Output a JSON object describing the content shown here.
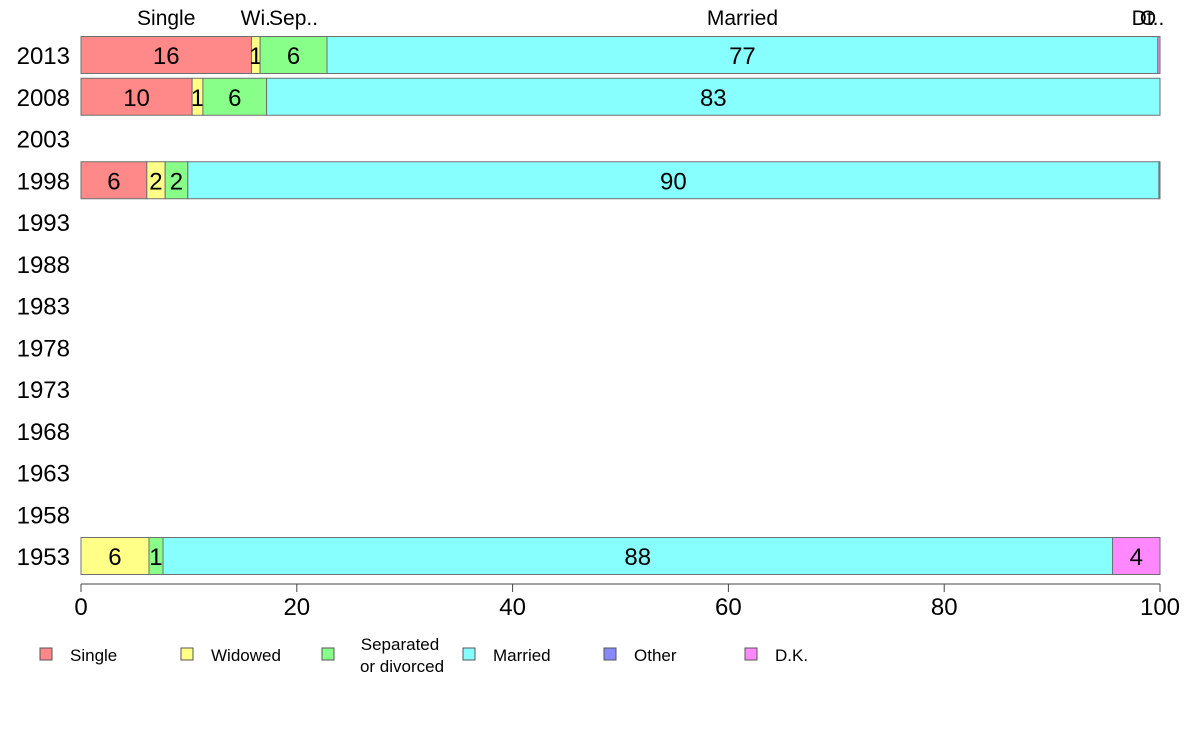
{
  "chart_data": {
    "type": "bar",
    "orientation": "horizontal",
    "stacked": true,
    "categories": [
      "2013",
      "2008",
      "2003",
      "1998",
      "1993",
      "1988",
      "1983",
      "1978",
      "1973",
      "1968",
      "1963",
      "1958",
      "1953"
    ],
    "series": [
      {
        "name": "Single",
        "color": "#FF8888",
        "values": [
          15.8,
          10.3,
          null,
          6.1,
          null,
          null,
          null,
          null,
          null,
          null,
          null,
          null,
          0
        ],
        "labels": [
          "16",
          "10",
          "",
          "6",
          "",
          "",
          "",
          "",
          "",
          "",
          "",
          "",
          ""
        ]
      },
      {
        "name": "Widowed",
        "color": "#FFFF88",
        "values": [
          0.8,
          1.0,
          null,
          1.7,
          null,
          null,
          null,
          null,
          null,
          null,
          null,
          null,
          6.3
        ],
        "labels": [
          "1",
          "1",
          "",
          "2",
          "",
          "",
          "",
          "",
          "",
          "",
          "",
          "",
          "6"
        ]
      },
      {
        "name": "Separated or divorced",
        "color": "#88FF88",
        "values": [
          6.2,
          5.9,
          null,
          2.1,
          null,
          null,
          null,
          null,
          null,
          null,
          null,
          null,
          1.3
        ],
        "labels": [
          "6",
          "6",
          "",
          "2",
          "",
          "",
          "",
          "",
          "",
          "",
          "",
          "",
          "1"
        ]
      },
      {
        "name": "Married",
        "color": "#88FFFF",
        "values": [
          77.0,
          82.8,
          null,
          90.0,
          null,
          null,
          null,
          null,
          null,
          null,
          null,
          null,
          88.0
        ],
        "labels": [
          "77",
          "83",
          "",
          "90",
          "",
          "",
          "",
          "",
          "",
          "",
          "",
          "",
          "88"
        ]
      },
      {
        "name": "Other",
        "color": "#8888FF",
        "values": [
          0,
          0,
          null,
          0,
          null,
          null,
          null,
          null,
          null,
          null,
          null,
          null,
          0
        ],
        "labels": [
          "",
          "",
          "",
          "",
          "",
          "",
          "",
          "",
          "",
          "",
          "",
          "",
          ""
        ]
      },
      {
        "name": "D.K.",
        "color": "#FF88FF",
        "values": [
          0.2,
          0,
          null,
          0.1,
          null,
          null,
          null,
          null,
          null,
          null,
          null,
          null,
          4.4
        ],
        "labels": [
          "",
          "",
          "",
          "",
          "",
          "",
          "",
          "",
          "",
          "",
          "",
          "",
          "4"
        ]
      }
    ],
    "top_labels": [
      {
        "text": "Single",
        "series": "Single"
      },
      {
        "text": "Wi.",
        "series": "Widowed"
      },
      {
        "text": "Sep..",
        "series": "Separated or divorced"
      },
      {
        "text": "Married",
        "series": "Married"
      },
      {
        "text": "O",
        "series": "Other"
      },
      {
        "text": "Dt..",
        "series": "D.K."
      }
    ],
    "xlim": [
      0,
      100
    ],
    "xticks": [
      0,
      20,
      40,
      60,
      80,
      100
    ],
    "grid": false,
    "legend_position": "bottom",
    "legend": [
      {
        "lines": [
          "Single"
        ],
        "color": "#FF8888"
      },
      {
        "lines": [
          "Widowed"
        ],
        "color": "#FFFF88"
      },
      {
        "lines": [
          "Separated",
          "or divorced"
        ],
        "color": "#88FF88"
      },
      {
        "lines": [
          "Married"
        ],
        "color": "#88FFFF"
      },
      {
        "lines": [
          "Other"
        ],
        "color": "#8888FF"
      },
      {
        "lines": [
          "D.K."
        ],
        "color": "#FF88FF"
      }
    ]
  }
}
